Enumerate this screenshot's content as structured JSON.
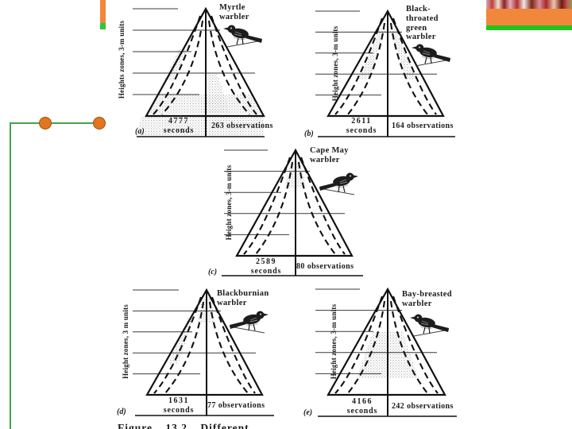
{
  "slide": {
    "decorations": {
      "left_bar_color": "#F0873B",
      "left_bar_accent_color": "#2DC832",
      "right_bar_color": "#F0873B",
      "right_bar_accent_color": "#24C41E",
      "connector_line_color": "#44A34E",
      "bullet_color": "#E0761F"
    }
  },
  "figure": {
    "caption_partial": "Figure 13.2   Different",
    "panels": [
      {
        "id": "a",
        "letter": "(a)",
        "species_lines": [
          "Myrtle",
          "warbler"
        ],
        "y_axis_label": "Heights zones, 3-m units",
        "seconds_value": "4777",
        "seconds_unit": "seconds",
        "observations": "263 observations"
      },
      {
        "id": "b",
        "letter": "(b)",
        "species_lines": [
          "Black-",
          "throated",
          "green",
          "warbler"
        ],
        "y_axis_label": "Height zones, 3-m units",
        "seconds_value": "2611",
        "seconds_unit": "seconds",
        "observations": "164 observations"
      },
      {
        "id": "c",
        "letter": "(c)",
        "species_lines": [
          "Cape May",
          "warbler"
        ],
        "y_axis_label": "Height zones, 3-m units",
        "seconds_value": "2589",
        "seconds_unit": "seconds",
        "observations": "80 observations"
      },
      {
        "id": "d",
        "letter": "(d)",
        "species_lines": [
          "Blackburnian",
          "warbler"
        ],
        "y_axis_label": "Height zones, 3 m units",
        "seconds_value": "1631",
        "seconds_unit": "seconds",
        "observations": "77 observations"
      },
      {
        "id": "e",
        "letter": "(e)",
        "species_lines": [
          "Bay-breasted",
          "warbler"
        ],
        "y_axis_label": "Height zones, 3-m units",
        "seconds_value": "4166",
        "seconds_unit": "seconds",
        "observations": "242 observations"
      }
    ]
  }
}
